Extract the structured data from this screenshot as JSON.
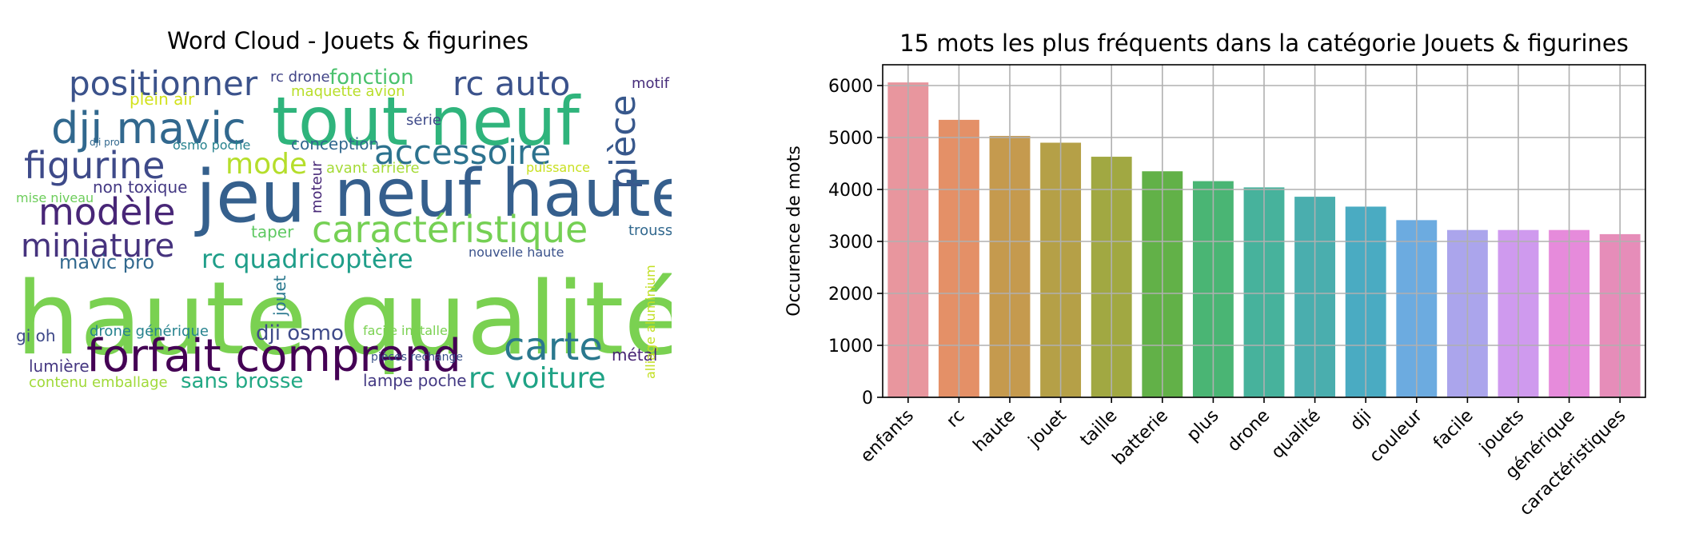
{
  "wordcloud": {
    "title": "Word Cloud - Jouets & figurines",
    "words": [
      {
        "text": "haute qualité",
        "color": "#7ad151",
        "big": 1
      },
      {
        "text": "tout neuf",
        "color": "#2fb47c",
        "big": 1
      },
      {
        "text": "jeu",
        "color": "#35608d",
        "big": 1
      },
      {
        "text": "neuf haute",
        "color": "#355f8d",
        "big": 1
      },
      {
        "text": "forfait comprend",
        "color": "#440154",
        "big": 1
      },
      {
        "text": "dji mavic",
        "color": "#31688e",
        "big": 1
      },
      {
        "text": "caractéristique",
        "color": "#75d054",
        "big": 1
      },
      {
        "text": "positionner",
        "color": "#3b528b",
        "big": 1
      },
      {
        "text": "figurine",
        "color": "#3e4a89",
        "big": 1
      },
      {
        "text": "modèle",
        "color": "#482677",
        "big": 1
      },
      {
        "text": "miniature",
        "color": "#46337e",
        "big": 1
      },
      {
        "text": "accessoire",
        "color": "#2c728e",
        "big": 1
      },
      {
        "text": "carte",
        "color": "#2a788e",
        "big": 1
      },
      {
        "text": "rc auto",
        "color": "#3b528b",
        "big": 1
      },
      {
        "text": "pièce",
        "color": "#38588c",
        "big": 1
      },
      {
        "text": "mode",
        "color": "#b5de2b",
        "big": 1
      },
      {
        "text": "rc voiture",
        "color": "#20a386",
        "big": 1
      },
      {
        "text": "rc quadricoptère",
        "color": "#1f9e89",
        "big": 1
      },
      {
        "text": "fonction",
        "color": "#4ac16d",
        "big": 0
      },
      {
        "text": "rc drone",
        "color": "#414487",
        "big": 0
      },
      {
        "text": "motif",
        "color": "#472d7b",
        "big": 0
      },
      {
        "text": "mavic pro",
        "color": "#31688e",
        "big": 0
      },
      {
        "text": "conception",
        "color": "#31688e",
        "big": 0
      },
      {
        "text": "non toxique",
        "color": "#443983",
        "big": 0
      },
      {
        "text": "dji osmo",
        "color": "#3e4a89",
        "big": 0
      },
      {
        "text": "sans brosse",
        "color": "#22a884",
        "big": 0
      },
      {
        "text": "lampe poche",
        "color": "#443983",
        "big": 0
      },
      {
        "text": "contenu emballage",
        "color": "#a0da39",
        "big": 0
      },
      {
        "text": "drone générique",
        "color": "#26828e",
        "big": 0
      },
      {
        "text": "lumière",
        "color": "#453781",
        "big": 0
      },
      {
        "text": "métal",
        "color": "#482475",
        "big": 0
      },
      {
        "text": "trousse",
        "color": "#31688e",
        "big": 0
      },
      {
        "text": "taper",
        "color": "#5ec962",
        "big": 0
      },
      {
        "text": "plein air",
        "color": "#d2e21b",
        "big": 0
      },
      {
        "text": "série",
        "color": "#3e4a89",
        "big": 0
      },
      {
        "text": "jouet",
        "color": "#2a788e",
        "big": 0
      },
      {
        "text": "avant arrière",
        "color": "#a5db36",
        "big": 0
      },
      {
        "text": "puissance",
        "color": "#c8e020",
        "big": 0
      },
      {
        "text": "mise niveau",
        "color": "#6ccd5a",
        "big": 0
      },
      {
        "text": "moteur",
        "color": "#482878",
        "big": 0
      },
      {
        "text": "nouvelle haute",
        "color": "#3b528b",
        "big": 0
      },
      {
        "text": "gi oh",
        "color": "#3e4989",
        "big": 0
      },
      {
        "text": "maquette avion",
        "color": "#b8de29",
        "big": 0
      },
      {
        "text": "facile installer",
        "color": "#7ad151",
        "big": 0
      },
      {
        "text": "alliage aluminium",
        "color": "#c2df23",
        "big": 0
      },
      {
        "text": "osmo poche",
        "color": "#26828e",
        "big": 0
      },
      {
        "text": "pièces rechange",
        "color": "#3b528b",
        "big": 0
      },
      {
        "text": "dji pro",
        "color": "#31688e",
        "big": 0
      }
    ]
  },
  "chart_data": {
    "type": "bar",
    "title": "15 mots les plus fréquents dans la catégorie Jouets & figurines",
    "xlabel": "",
    "ylabel": "Occurence de mots",
    "categories": [
      "enfants",
      "rc",
      "haute",
      "jouet",
      "taille",
      "batterie",
      "plus",
      "drone",
      "qualité",
      "dji",
      "couleur",
      "facile",
      "jouets",
      "générique",
      "caractéristiques"
    ],
    "values": [
      6060,
      5340,
      5030,
      4900,
      4630,
      4350,
      4160,
      4040,
      3860,
      3670,
      3410,
      3220,
      3220,
      3220,
      3140
    ],
    "colors": [
      "#e8969e",
      "#e49067",
      "#c59a4e",
      "#b5a047",
      "#a1a842",
      "#62b148",
      "#4ab574",
      "#47b29c",
      "#4aaeae",
      "#4aabc2",
      "#6cabe0",
      "#aba5ec",
      "#cf9aee",
      "#e68bdb",
      "#e68db9"
    ],
    "ylim": [
      0,
      6400
    ],
    "yticks": [
      0,
      1000,
      2000,
      3000,
      4000,
      5000,
      6000
    ],
    "grid": true
  }
}
